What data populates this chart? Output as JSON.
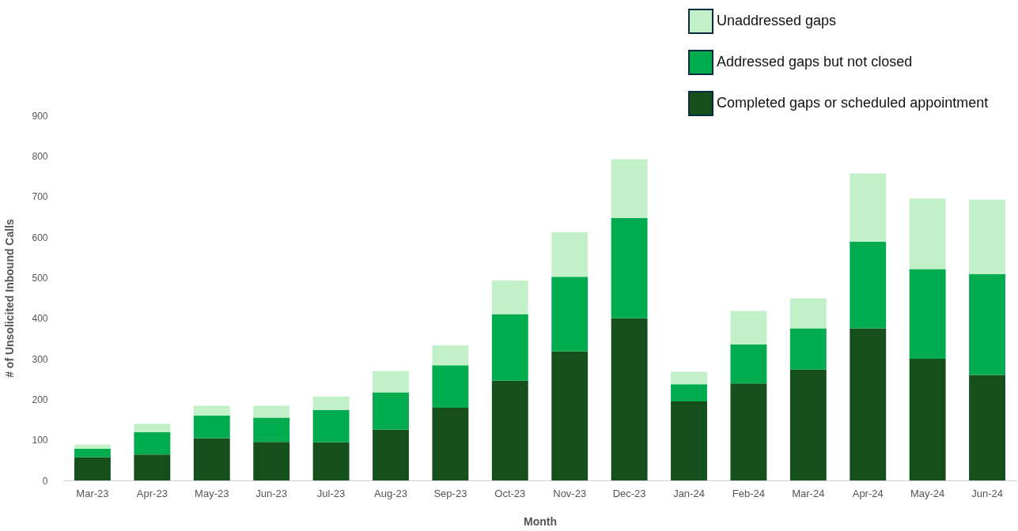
{
  "chart_data": {
    "type": "bar",
    "stacked": true,
    "xlabel": "Month",
    "ylabel": "# of Unsolicited Inbound Calls",
    "categories": [
      "Mar-23",
      "Apr-23",
      "May-23",
      "Jun-23",
      "Jul-23",
      "Aug-23",
      "Sep-23",
      "Oct-23",
      "Nov-23",
      "Dec-23",
      "Jan-24",
      "Feb-24",
      "Mar-24",
      "Apr-24",
      "May-24",
      "Jun-24"
    ],
    "series": [
      {
        "name": "Completed gaps or scheduled appointment",
        "color": "#154f1c",
        "values": [
          57,
          64,
          104,
          95,
          94,
          125,
          179,
          246,
          318,
          400,
          195,
          239,
          273,
          375,
          300,
          260
        ]
      },
      {
        "name": "Addressed gaps but not closed",
        "color": "#00ac4e",
        "values": [
          21,
          55,
          56,
          60,
          80,
          92,
          105,
          164,
          184,
          247,
          42,
          96,
          102,
          214,
          221,
          249
        ]
      },
      {
        "name": "Unaddressed gaps",
        "color": "#c2f0c8",
        "values": [
          10,
          21,
          24,
          29,
          33,
          53,
          49,
          83,
          110,
          145,
          31,
          83,
          74,
          168,
          174,
          183
        ]
      }
    ],
    "ylim": [
      0,
      900
    ],
    "yticks": [
      0,
      100,
      200,
      300,
      400,
      500,
      600,
      700,
      800,
      900
    ],
    "grid": false,
    "legend": "top right"
  }
}
